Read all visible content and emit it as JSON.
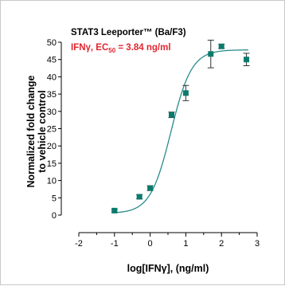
{
  "chart_data": {
    "type": "scatter",
    "title": "STAT3 Leeporter™ (Ba/F3)",
    "subtitle_prefix": "IFNγ, EC",
    "subtitle_sub": "50",
    "subtitle_suffix": " = 3.84 ng/ml",
    "xlabel": "log[IFNγ], (ng/ml)",
    "ylabel_line1": "Normalized fold change",
    "ylabel_line2": "to vehicle control",
    "xlim": [
      -2,
      3
    ],
    "ylim": [
      0,
      50
    ],
    "xticks": [
      "-2",
      "-1",
      "0",
      "1",
      "2",
      "3"
    ],
    "yticks": [
      "0",
      "5",
      "10",
      "15",
      "20",
      "25",
      "30",
      "35",
      "40",
      "45",
      "50"
    ],
    "marker_color": "#0b7a6c",
    "curve_color": "#2a8c8c",
    "series": [
      {
        "points": [
          {
            "x": -1.0,
            "y": 1.3,
            "err": 0.4
          },
          {
            "x": -0.3,
            "y": 5.3,
            "err": 0.6
          },
          {
            "x": 0.0,
            "y": 7.8,
            "err": 0.7
          },
          {
            "x": 0.6,
            "y": 29.0,
            "err": 0.8
          },
          {
            "x": 1.0,
            "y": 35.3,
            "err": 2.2
          },
          {
            "x": 1.7,
            "y": 46.6,
            "err": 4.0
          },
          {
            "x": 2.0,
            "y": 48.8,
            "err": 0.6
          },
          {
            "x": 2.7,
            "y": 45.0,
            "err": 1.8
          }
        ],
        "fit": {
          "model": "4PL",
          "bottom": 0.5,
          "top": 47.8,
          "logEC50": 0.584,
          "hill": 1.5
        }
      }
    ],
    "grid": false,
    "legend": "none"
  }
}
